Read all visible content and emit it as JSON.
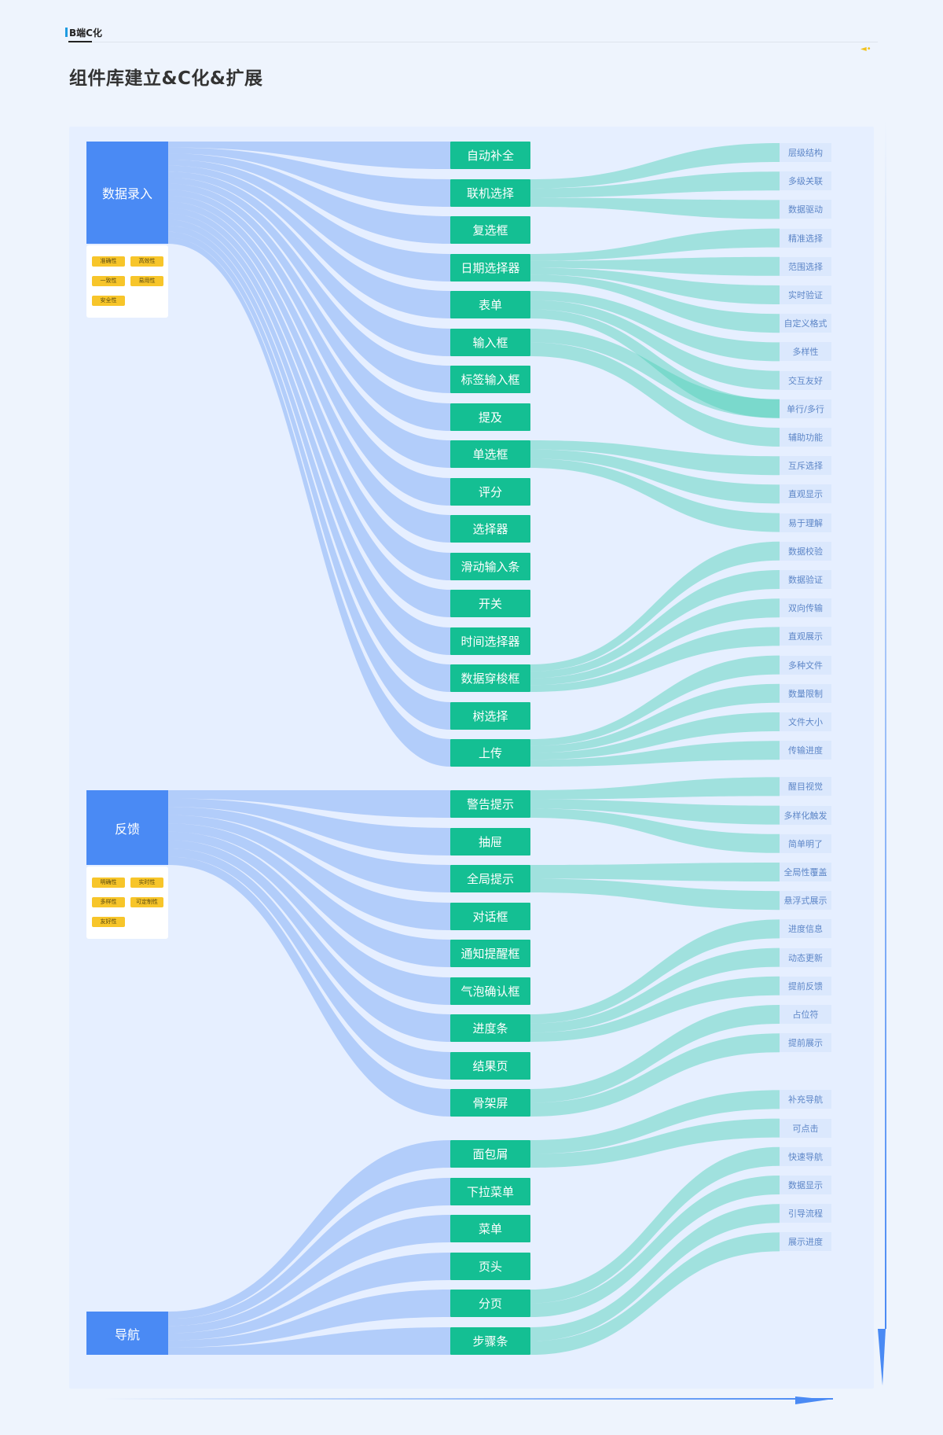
{
  "header": {
    "tab_label": "B端C化",
    "title": "组件库建立&C化&扩展",
    "speaker_icon": "speaker-icon"
  },
  "colors": {
    "source": "#4a8af4",
    "node": "#14bf93",
    "feature_bg": "#dbe8fd",
    "feature_text": "#5d86c7",
    "tag": "#f7c52a",
    "flow_blue": "#6b9ef2",
    "flow_teal": "#4cd1b5"
  },
  "sources": [
    {
      "label": "数据录入",
      "tags": [
        "准确性",
        "高效性",
        "一致性",
        "易用性",
        "安全性"
      ]
    },
    {
      "label": "反馈",
      "tags": [
        "明确性",
        "实时性",
        "多样性",
        "可定制性",
        "友好性"
      ]
    },
    {
      "label": "导航",
      "tags": []
    }
  ],
  "components": [
    {
      "label": "自动补全",
      "source": 0,
      "features": []
    },
    {
      "label": "联机选择",
      "source": 0,
      "features": [
        0,
        1,
        2
      ]
    },
    {
      "label": "复选框",
      "source": 0,
      "features": []
    },
    {
      "label": "日期选择器",
      "source": 0,
      "features": [
        3,
        4,
        5,
        6
      ]
    },
    {
      "label": "表单",
      "source": 0,
      "features": [
        7,
        8,
        9
      ]
    },
    {
      "label": "输入框",
      "source": 0,
      "features": [
        9,
        10
      ]
    },
    {
      "label": "标签输入框",
      "source": 0,
      "features": []
    },
    {
      "label": "提及",
      "source": 0,
      "features": []
    },
    {
      "label": "单选框",
      "source": 0,
      "features": [
        11,
        12,
        13
      ]
    },
    {
      "label": "评分",
      "source": 0,
      "features": []
    },
    {
      "label": "选择器",
      "source": 0,
      "features": []
    },
    {
      "label": "滑动输入条",
      "source": 0,
      "features": []
    },
    {
      "label": "开关",
      "source": 0,
      "features": []
    },
    {
      "label": "时间选择器",
      "source": 0,
      "features": []
    },
    {
      "label": "数据穿梭框",
      "source": 0,
      "features": [
        14,
        15,
        16,
        17
      ]
    },
    {
      "label": "树选择",
      "source": 0,
      "features": []
    },
    {
      "label": "上传",
      "source": 0,
      "features": [
        18,
        19,
        20,
        21
      ]
    },
    {
      "label": "警告提示",
      "source": 1,
      "features": [
        22,
        23,
        24
      ]
    },
    {
      "label": "抽屉",
      "source": 1,
      "features": []
    },
    {
      "label": "全局提示",
      "source": 1,
      "features": [
        25,
        26
      ]
    },
    {
      "label": "对话框",
      "source": 1,
      "features": []
    },
    {
      "label": "通知提醒框",
      "source": 1,
      "features": []
    },
    {
      "label": "气泡确认框",
      "source": 1,
      "features": []
    },
    {
      "label": "进度条",
      "source": 1,
      "features": [
        27,
        28,
        29
      ]
    },
    {
      "label": "结果页",
      "source": 1,
      "features": []
    },
    {
      "label": "骨架屏",
      "source": 1,
      "features": [
        30,
        31
      ]
    },
    {
      "label": "面包屑",
      "source": 2,
      "features": [
        32,
        33
      ]
    },
    {
      "label": "下拉菜单",
      "source": 2,
      "features": []
    },
    {
      "label": "菜单",
      "source": 2,
      "features": []
    },
    {
      "label": "页头",
      "source": 2,
      "features": []
    },
    {
      "label": "分页",
      "source": 2,
      "features": [
        34,
        35
      ]
    },
    {
      "label": "步骤条",
      "source": 2,
      "features": [
        36,
        37
      ]
    }
  ],
  "features": [
    "层级结构",
    "多级关联",
    "数据驱动",
    "精准选择",
    "范围选择",
    "实时验证",
    "自定义格式",
    "多样性",
    "交互友好",
    "单行/多行",
    "辅助功能",
    "互斥选择",
    "直观显示",
    "易于理解",
    "数据校验",
    "数据验证",
    "双向传输",
    "直观展示",
    "多种文件",
    "数量限制",
    "文件大小",
    "传输进度",
    "醒目视觉",
    "多样化触发",
    "简单明了",
    "全局性覆盖",
    "悬浮式展示",
    "进度信息",
    "动态更新",
    "提前反馈",
    "占位符",
    "提前展示",
    "补充导航",
    "可点击",
    "快速导航",
    "数据显示",
    "引导流程",
    "展示进度"
  ]
}
